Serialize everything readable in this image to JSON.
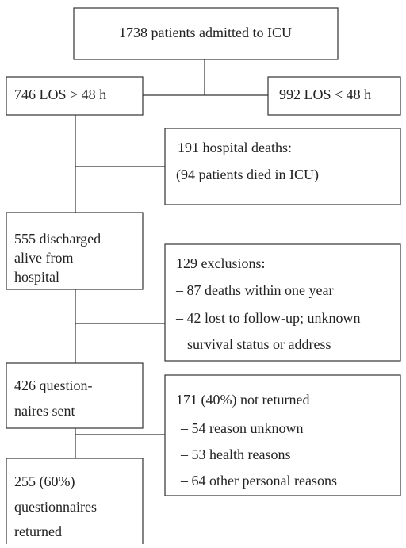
{
  "nodes": [
    {
      "lines": [
        "1738 patients admitted to ICU"
      ]
    },
    {
      "lines": [
        "746 LOS > 48 h"
      ]
    },
    {
      "lines": [
        "992 LOS < 48 h"
      ]
    },
    {
      "lines": [
        "191 hospital deaths:",
        "(94 patients died in ICU)"
      ]
    },
    {
      "lines": [
        "555 discharged",
        "alive from",
        "hospital"
      ]
    },
    {
      "lines": [
        "129 exclusions:",
        "– 87 deaths within one year",
        "– 42 lost to follow-up; unknown",
        "survival status or address"
      ]
    },
    {
      "lines": [
        "426 question-",
        "naires sent"
      ]
    },
    {
      "lines": [
        "171 (40%) not returned",
        "– 54 reason unknown",
        "– 53 health reasons",
        "– 64 other personal reasons"
      ]
    },
    {
      "lines": [
        "255 (60%)",
        "questionnaires",
        "returned"
      ]
    }
  ]
}
